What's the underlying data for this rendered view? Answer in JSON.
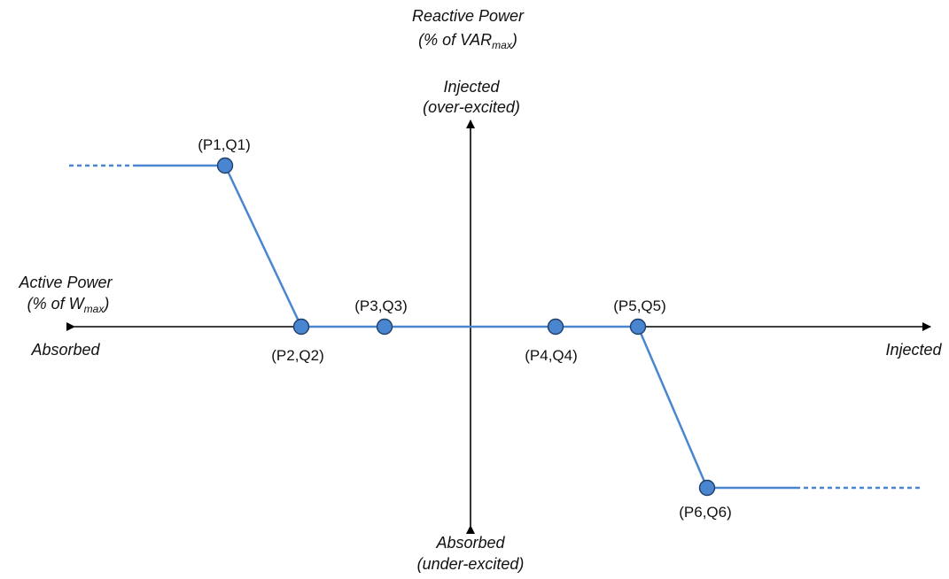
{
  "colors": {
    "curve": "#4a86d0",
    "marker_fill": "#4a86d0",
    "marker_stroke": "#1f3f6b",
    "axis": "#000000"
  },
  "y_axis": {
    "title": "Reactive Power",
    "unit_prefix": "(% of VAR",
    "unit_subscript": "max",
    "unit_suffix": ")",
    "positive_label": "Injected",
    "positive_sublabel": "(over-excited)",
    "negative_label": "Absorbed",
    "negative_sublabel": "(under-excited)"
  },
  "x_axis": {
    "title": "Active Power",
    "unit_prefix": "(% of W",
    "unit_subscript": "max",
    "unit_suffix": ")",
    "negative_label": "Absorbed",
    "positive_label": "Injected"
  },
  "points": [
    {
      "label": "(P1,Q1)"
    },
    {
      "label": "(P2,Q2)"
    },
    {
      "label": "(P3,Q3)"
    },
    {
      "label": "(P4,Q4)"
    },
    {
      "label": "(P5,Q5)"
    },
    {
      "label": "(P6,Q6)"
    }
  ]
}
